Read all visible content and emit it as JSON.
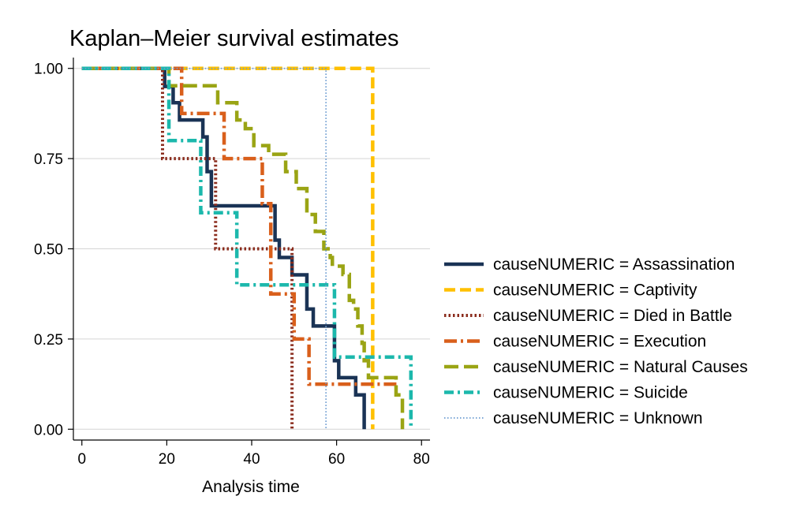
{
  "chart_data": {
    "type": "line",
    "step": true,
    "title": "Kaplan–Meier survival estimates",
    "xlabel": "Analysis time",
    "ylabel": "",
    "xlim": [
      -2,
      82
    ],
    "ylim": [
      -0.03,
      1.03
    ],
    "xticks": [
      0,
      20,
      40,
      60,
      80
    ],
    "xtick_labels": [
      "0",
      "20",
      "40",
      "60",
      "80"
    ],
    "yticks": [
      0,
      0.25,
      0.5,
      0.75,
      1
    ],
    "ytick_labels": [
      "0.00",
      "0.25",
      "0.50",
      "0.75",
      "1.00"
    ],
    "grid": "horizontal",
    "legend_position": "right",
    "series": [
      {
        "name": "causeNUMERIC = Assassination",
        "color": "#1a3355",
        "dash": "solid",
        "x": [
          0,
          19.5,
          21.5,
          23,
          28.5,
          29.5,
          30.5,
          45,
          45.5,
          46.5,
          49.5,
          53,
          54.5,
          59.5,
          60.5,
          64.5,
          66.5,
          66.5
        ],
        "y": [
          1,
          0.95,
          0.905,
          0.857,
          0.81,
          0.714,
          0.619,
          0.619,
          0.524,
          0.476,
          0.428,
          0.333,
          0.286,
          0.19,
          0.143,
          0.095,
          0.0,
          0.0
        ]
      },
      {
        "name": "causeNUMERIC = Captivity",
        "color": "#ffc000",
        "dash": "long",
        "x": [
          0,
          68.5,
          68.5
        ],
        "y": [
          1,
          0.0,
          0.0
        ]
      },
      {
        "name": "causeNUMERIC = Died in Battle",
        "color": "#8b2d1e",
        "dash": "dot",
        "x": [
          0,
          19,
          31.5,
          49.5,
          49.5
        ],
        "y": [
          1,
          0.75,
          0.5,
          0.25,
          0.0
        ]
      },
      {
        "name": "causeNUMERIC = Execution",
        "color": "#d95f1b",
        "dash": "dashdot-long",
        "x": [
          0,
          23.5,
          24.5,
          33.5,
          42.5,
          44.5,
          50,
          53.5,
          61.5,
          75
        ],
        "y": [
          1,
          0.875,
          0.875,
          0.75,
          0.625,
          0.375,
          0.25,
          0.125,
          0.125,
          0.125
        ]
      },
      {
        "name": "causeNUMERIC = Natural Causes",
        "color": "#9aa414",
        "dash": "longlong",
        "x": [
          0,
          20.5,
          32,
          36.5,
          38.5,
          40.5,
          44,
          48,
          50.5,
          53,
          55,
          57,
          58.5,
          59,
          61.5,
          63,
          64,
          65,
          66,
          66.5,
          67.5,
          74,
          75.5,
          75.5
        ],
        "y": [
          1,
          0.952,
          0.905,
          0.857,
          0.833,
          0.786,
          0.762,
          0.714,
          0.667,
          0.595,
          0.548,
          0.5,
          0.476,
          0.452,
          0.429,
          0.357,
          0.333,
          0.286,
          0.238,
          0.19,
          0.143,
          0.095,
          0.048,
          0.0
        ]
      },
      {
        "name": "causeNUMERIC = Suicide",
        "color": "#1cb8ac",
        "dash": "dashdot",
        "x": [
          0,
          20.5,
          28,
          36.5,
          59.5,
          77.5,
          77.5
        ],
        "y": [
          1,
          0.8,
          0.6,
          0.4,
          0.2,
          0.0,
          0.0
        ]
      },
      {
        "name": "causeNUMERIC = Unknown",
        "color": "#6b9bd0",
        "dash": "finedot",
        "x": [
          0,
          57.5,
          57.5
        ],
        "y": [
          1,
          0.0,
          0.0
        ]
      }
    ]
  }
}
